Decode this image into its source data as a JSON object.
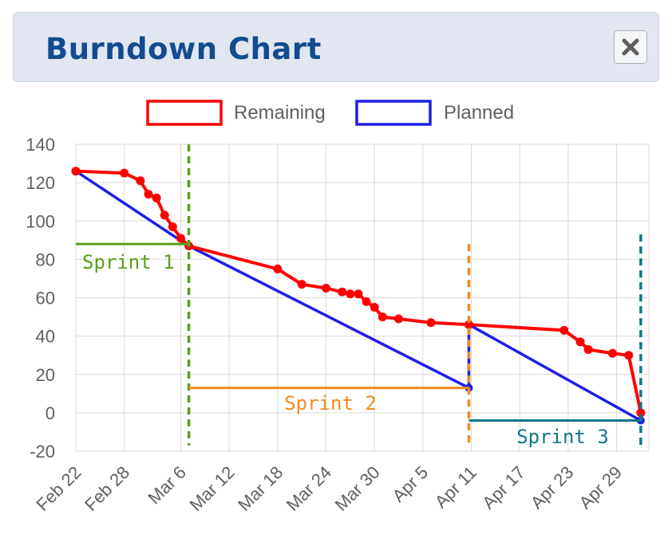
{
  "header": {
    "title": "Burndown Chart",
    "close_icon": "close-x-icon"
  },
  "colors": {
    "remaining": "#ff0000",
    "planned": "#1f1fe6",
    "sprint1": "#5a9e1c",
    "sprint2": "#ef8b1e",
    "sprint3": "#137587",
    "grid": "#d9d9d9",
    "header_bg": "#e1e6f1",
    "title": "#124b8f"
  },
  "chart_data": {
    "type": "line",
    "title": "Burndown Chart",
    "legend": {
      "position": "top",
      "entries": [
        "Remaining",
        "Planned"
      ]
    },
    "grid": true,
    "x_start": "2024-02-22",
    "x_range": [
      0,
      71
    ],
    "xticks": [
      {
        "x": 0,
        "label": "Feb 22"
      },
      {
        "x": 6,
        "label": "Feb 28"
      },
      {
        "x": 13,
        "label": "Mar 6"
      },
      {
        "x": 19,
        "label": "Mar 12"
      },
      {
        "x": 25,
        "label": "Mar 18"
      },
      {
        "x": 31,
        "label": "Mar 24"
      },
      {
        "x": 37,
        "label": "Mar 30"
      },
      {
        "x": 43,
        "label": "Apr 5"
      },
      {
        "x": 49,
        "label": "Apr 11"
      },
      {
        "x": 55,
        "label": "Apr 17"
      },
      {
        "x": 61,
        "label": "Apr 23"
      },
      {
        "x": 67,
        "label": "Apr 29"
      }
    ],
    "ylim": [
      -20,
      140
    ],
    "yticks": [
      -20,
      0,
      20,
      40,
      60,
      80,
      100,
      120,
      140
    ],
    "series": [
      {
        "name": "Remaining",
        "color": "#ff0000",
        "points": [
          [
            0,
            126
          ],
          [
            6,
            125
          ],
          [
            8,
            121
          ],
          [
            9,
            114
          ],
          [
            10,
            112
          ],
          [
            11,
            103
          ],
          [
            12,
            97
          ],
          [
            13,
            91
          ],
          [
            14,
            87
          ],
          [
            25,
            75
          ],
          [
            28,
            67
          ],
          [
            31,
            65
          ],
          [
            33,
            63
          ],
          [
            34,
            62
          ],
          [
            35,
            62
          ],
          [
            36,
            58
          ],
          [
            37,
            55
          ],
          [
            38,
            50
          ],
          [
            40,
            49
          ],
          [
            44,
            47
          ],
          [
            48.7,
            46
          ],
          [
            60.5,
            43
          ],
          [
            62.5,
            37
          ],
          [
            63.5,
            33
          ],
          [
            66.5,
            31
          ],
          [
            68.5,
            30
          ],
          [
            70,
            0
          ]
        ]
      },
      {
        "name": "Planned",
        "color": "#1f1fe6",
        "points": [
          [
            0,
            126
          ],
          [
            14,
            87
          ],
          [
            48.7,
            13
          ],
          [
            48.7,
            46
          ],
          [
            70,
            -4
          ]
        ]
      }
    ],
    "sprints": [
      {
        "label": "Sprint 1",
        "color": "#5a9e1c",
        "start": 0,
        "end": 14,
        "level": 88,
        "boundary_x": 14,
        "boundary_y": [
          -17,
          140
        ]
      },
      {
        "label": "Sprint 2",
        "color": "#ef8b1e",
        "start": 14,
        "end": 48.7,
        "level": 13,
        "boundary_x": 48.7,
        "boundary_y": [
          -17,
          88
        ]
      },
      {
        "label": "Sprint 3",
        "color": "#137587",
        "start": 48.7,
        "end": 70,
        "level": -4,
        "boundary_x": 70,
        "boundary_y": [
          -19,
          93
        ]
      }
    ]
  }
}
